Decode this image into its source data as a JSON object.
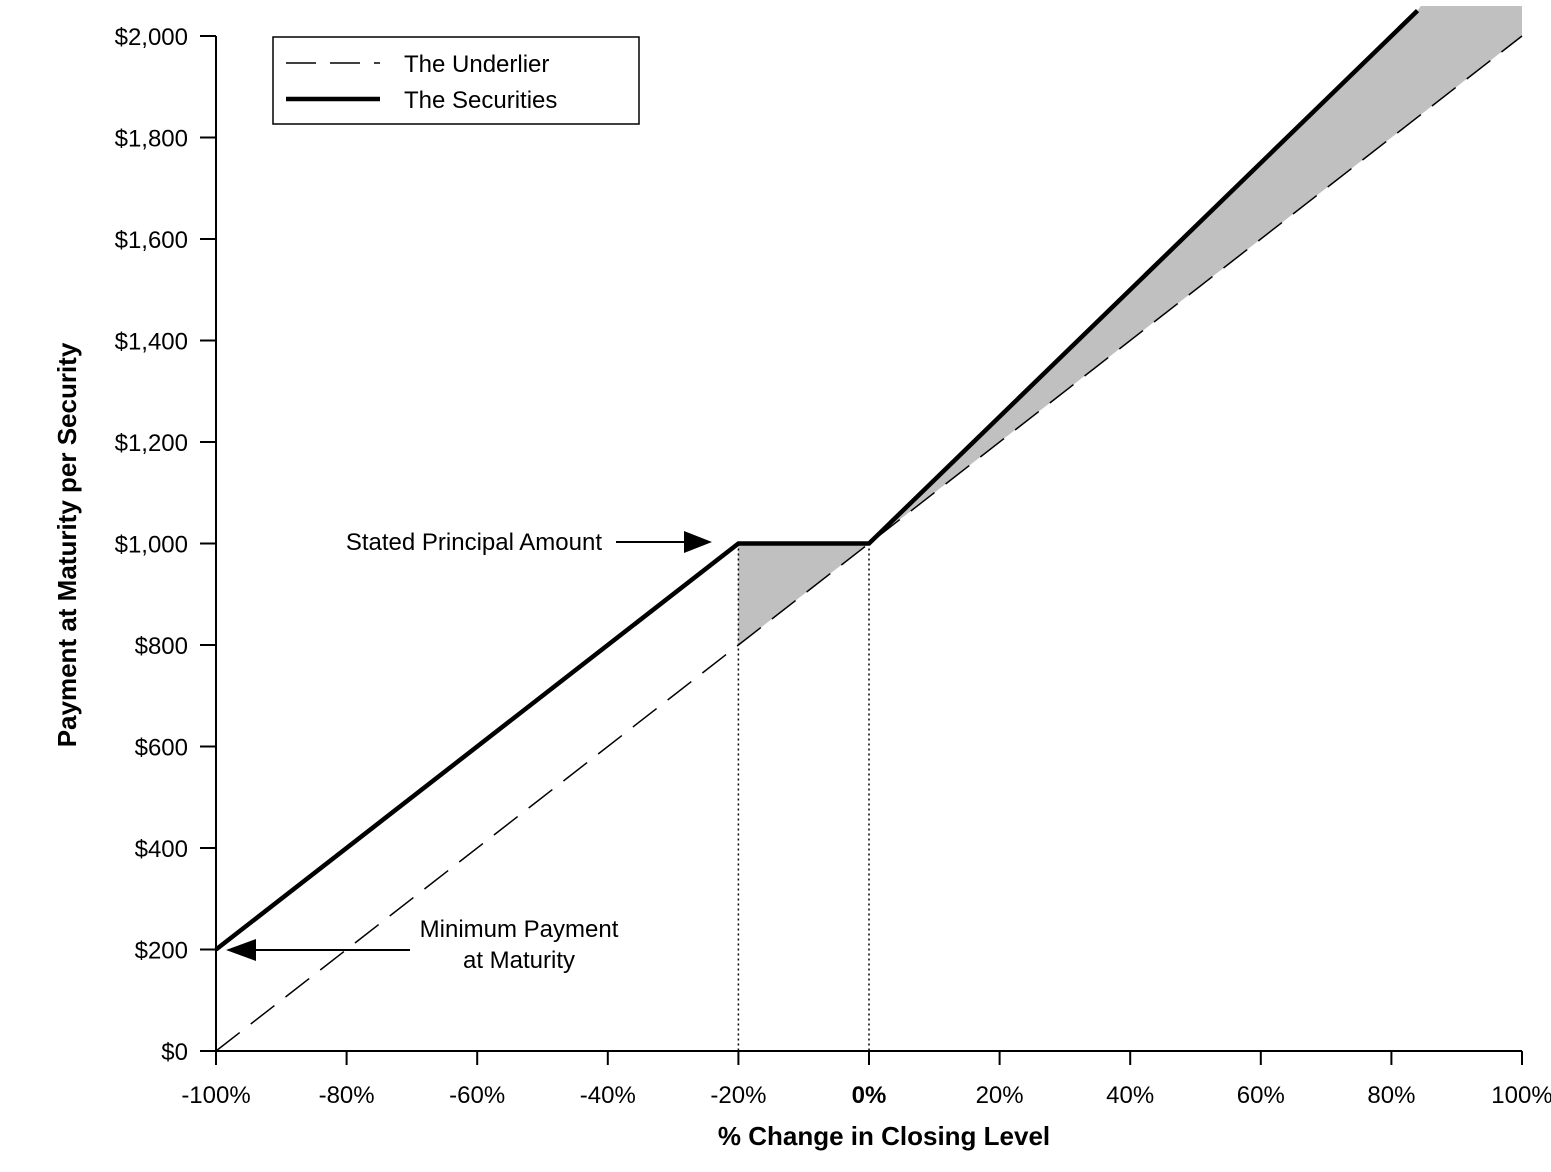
{
  "chart_data": {
    "type": "line",
    "title": "",
    "xlabel": "% Change in Closing Level",
    "ylabel": "Payment at Maturity per Security",
    "xlim": [
      -100,
      100
    ],
    "ylim": [
      0,
      2000
    ],
    "x_ticks": [
      -100,
      -80,
      -60,
      -40,
      -20,
      0,
      20,
      40,
      60,
      80,
      100
    ],
    "x_tick_labels": [
      "-100%",
      "-80%",
      "-60%",
      "-40%",
      "-20%",
      "0%",
      "20%",
      "40%",
      "60%",
      "80%",
      "100%"
    ],
    "y_ticks": [
      0,
      200,
      400,
      600,
      800,
      1000,
      1200,
      1400,
      1600,
      1800,
      2000
    ],
    "y_tick_labels": [
      "$0",
      "$200",
      "$400",
      "$600",
      "$800",
      "$1,000",
      "$1,200",
      "$1,400",
      "$1,600",
      "$1,800",
      "$2,000"
    ],
    "grid": false,
    "legend_position": "top-left",
    "series": [
      {
        "name": "The Underlier",
        "style": "dashed",
        "x": [
          -100,
          100
        ],
        "y": [
          0,
          2000
        ]
      },
      {
        "name": "The Securities",
        "style": "solid-thick",
        "x": [
          -100,
          -20,
          0,
          84
        ],
        "y": [
          200,
          1000,
          1000,
          2050
        ]
      }
    ],
    "annotations": [
      {
        "text": "Stated Principal Amount",
        "x": -20,
        "y": 1000
      },
      {
        "text_lines": [
          "Minimum Payment",
          "at Maturity"
        ],
        "x": -100,
        "y": 200
      }
    ],
    "reference_lines": [
      {
        "x": -20,
        "style": "dotted"
      },
      {
        "x": 0,
        "style": "dotted"
      }
    ],
    "shaded_regions": [
      {
        "x_range": [
          -20,
          0
        ],
        "fill": "#c0c0c0"
      },
      {
        "x_range": [
          0,
          100
        ],
        "fill": "#c0c0c0"
      }
    ],
    "colors": {
      "line": "#000000",
      "shade": "#c0c0c0",
      "background": "#ffffff"
    }
  }
}
